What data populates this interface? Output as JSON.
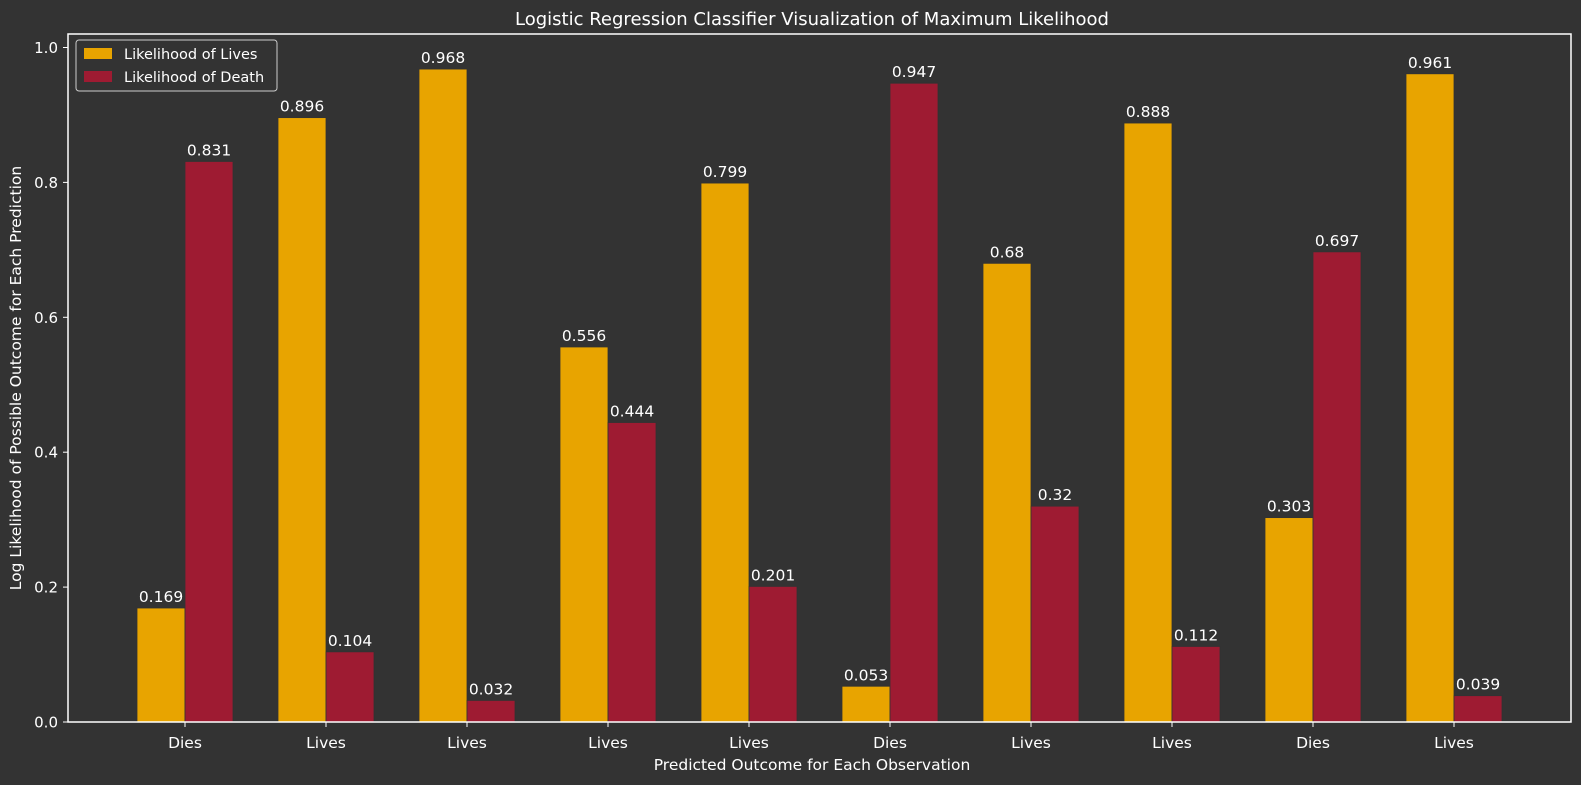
{
  "chart_data": {
    "type": "bar",
    "title": "Logistic Regression Classifier Visualization of Maximum Likelihood",
    "xlabel": "Predicted Outcome for Each Observation",
    "ylabel": "Log Likelihood of Possible Outcome for Each Prediction",
    "categories": [
      "Dies",
      "Lives",
      "Lives",
      "Lives",
      "Lives",
      "Dies",
      "Lives",
      "Lives",
      "Dies",
      "Lives"
    ],
    "series": [
      {
        "name": "Likelihood of Lives",
        "color": "#E8A400",
        "values": [
          0.169,
          0.896,
          0.968,
          0.556,
          0.799,
          0.053,
          0.68,
          0.888,
          0.303,
          0.961
        ],
        "labels": [
          "0.169",
          "0.896",
          "0.968",
          "0.556",
          "0.799",
          "0.053",
          "0.68",
          "0.888",
          "0.303",
          "0.961"
        ]
      },
      {
        "name": "Likelihood of Death",
        "color": "#9E1B32",
        "values": [
          0.831,
          0.104,
          0.032,
          0.444,
          0.201,
          0.947,
          0.32,
          0.112,
          0.697,
          0.039
        ],
        "labels": [
          "0.831",
          "0.104",
          "0.032",
          "0.444",
          "0.201",
          "0.947",
          "0.32",
          "0.112",
          "0.697",
          "0.039"
        ]
      }
    ],
    "ylim": [
      0,
      1.02
    ],
    "yticks": [
      0.0,
      0.2,
      0.4,
      0.6,
      0.8,
      1.0
    ],
    "ytick_labels": [
      "0.0",
      "0.2",
      "0.4",
      "0.6",
      "0.8",
      "1.0"
    ],
    "grid": false,
    "legend_position": "top-left",
    "background_color": "#333333",
    "axis_color": "#ffffff",
    "text_color": "#ffffff"
  }
}
